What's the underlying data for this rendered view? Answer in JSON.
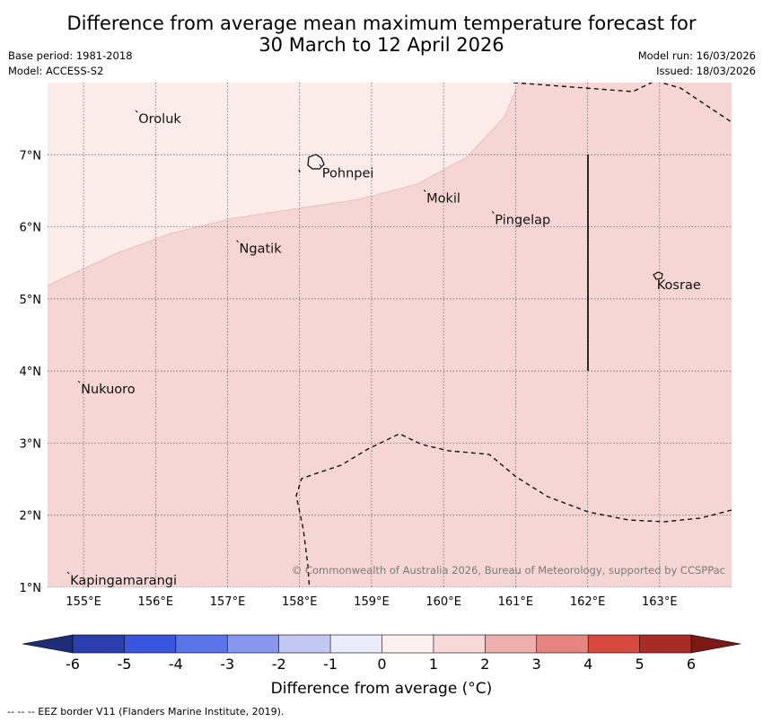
{
  "title_line1": "Difference from average mean maximum temperature forecast for",
  "title_line2": "30 March to 12 April 2026",
  "meta_left": [
    "Base period: 1981-2018",
    "Model: ACCESS-S2"
  ],
  "meta_right": [
    "Model run: 16/03/2026",
    "Issued: 18/03/2026"
  ],
  "map": {
    "lon_ticks": [
      "155°E",
      "156°E",
      "157°E",
      "158°E",
      "159°E",
      "160°E",
      "161°E",
      "162°E",
      "163°E"
    ],
    "lat_ticks": [
      "7°N",
      "6°N",
      "5°N",
      "4°N",
      "3°N",
      "2°N",
      "1°N"
    ],
    "places": [
      {
        "name": "Oroluk",
        "lon": 155.75,
        "lat": 7.6
      },
      {
        "name": "Pohnpei",
        "lon": 158.3,
        "lat": 6.85
      },
      {
        "name": "Mokil",
        "lon": 159.75,
        "lat": 6.5
      },
      {
        "name": "Pingelap",
        "lon": 160.7,
        "lat": 6.2
      },
      {
        "name": "Ngatik",
        "lon": 157.15,
        "lat": 5.8
      },
      {
        "name": "Kosrae",
        "lon": 162.95,
        "lat": 5.3
      },
      {
        "name": "Nukuoro",
        "lon": 154.95,
        "lat": 3.85
      },
      {
        "name": "Kapingamarangi",
        "lon": 154.8,
        "lat": 1.2
      }
    ],
    "copyright": "© Commonwealth of Australia 2026, Bureau of Meteorology, supported by CCSPPac",
    "colors": {
      "band_0_1": "#fbebe9",
      "band_1_2": "#f5d6d4"
    }
  },
  "colorbar": {
    "ticks": [
      "-6",
      "-5",
      "-4",
      "-3",
      "-2",
      "-1",
      "0",
      "1",
      "2",
      "3",
      "4",
      "5",
      "6"
    ],
    "colors": [
      "#2a3fad",
      "#3a55de",
      "#5b75e8",
      "#8797ec",
      "#c2c8f4",
      "#ebebfb",
      "#fdf0ee",
      "#f7d9d7",
      "#eeaeab",
      "#e6857f",
      "#d94a3e",
      "#a92b25"
    ],
    "under_color": "#1d2d78",
    "over_color": "#7a1916",
    "label": "Difference from average (°C)"
  },
  "footnote": "--  --  -- EEZ border V11 (Flanders Marine Institute, 2019)."
}
